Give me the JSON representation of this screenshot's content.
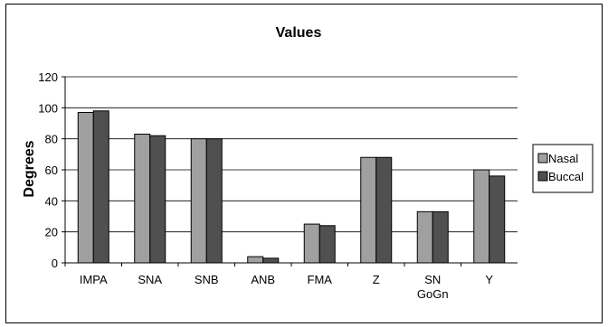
{
  "chart_data": {
    "type": "bar",
    "title": "Values",
    "xlabel": "",
    "ylabel": "Degrees",
    "ylim": [
      0,
      120
    ],
    "yticks": [
      0,
      20,
      40,
      60,
      80,
      100,
      120
    ],
    "grid": true,
    "legend_position": "right",
    "categories": [
      [
        "IMPA"
      ],
      [
        "SNA"
      ],
      [
        "SNB"
      ],
      [
        "ANB"
      ],
      [
        "FMA"
      ],
      [
        "Z"
      ],
      [
        "SN",
        "GoGn"
      ],
      [
        "Y"
      ]
    ],
    "series": [
      {
        "name": "Nasal",
        "color": "#a0a0a0",
        "values": [
          97,
          83,
          80,
          4,
          25,
          68,
          33,
          60
        ]
      },
      {
        "name": "Buccal",
        "color": "#505050",
        "values": [
          98,
          82,
          80,
          3,
          24,
          68,
          33,
          56
        ]
      }
    ]
  }
}
